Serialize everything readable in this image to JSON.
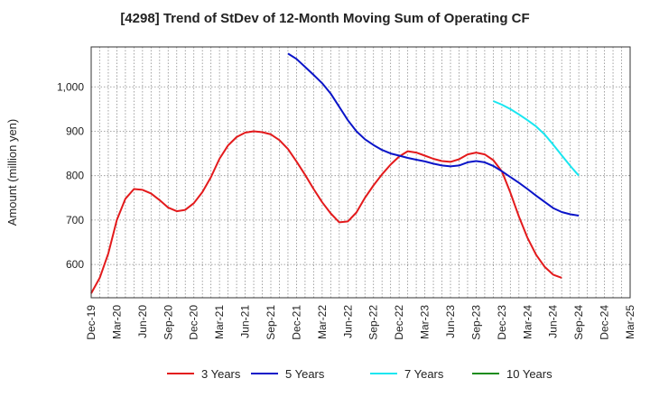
{
  "chart_data": {
    "type": "line",
    "title": "[4298]  Trend of StDev of 12-Month Moving Sum of Operating CF",
    "xlabel": "",
    "ylabel": "Amount (million yen)",
    "x_ticks": [
      "Dec-19",
      "Mar-20",
      "Jun-20",
      "Sep-20",
      "Dec-20",
      "Mar-21",
      "Jun-21",
      "Sep-21",
      "Dec-21",
      "Mar-22",
      "Jun-22",
      "Sep-22",
      "Dec-22",
      "Mar-23",
      "Jun-23",
      "Sep-23",
      "Dec-23",
      "Mar-24",
      "Jun-24",
      "Sep-24",
      "Dec-24",
      "Mar-25"
    ],
    "y_ticks": [
      600,
      700,
      800,
      900,
      1000
    ],
    "y_tick_labels": [
      "600",
      "700",
      "800",
      "900",
      "1,000"
    ],
    "ylim": [
      525,
      1090
    ],
    "grid": true,
    "legend_position": "bottom",
    "series": [
      {
        "name": "3 Years",
        "color": "#e31a1c",
        "points": [
          [
            "Dec-19",
            535
          ],
          [
            "Jan-20",
            570
          ],
          [
            "Feb-20",
            625
          ],
          [
            "Mar-20",
            700
          ],
          [
            "Apr-20",
            748
          ],
          [
            "May-20",
            770
          ],
          [
            "Jun-20",
            768
          ],
          [
            "Jul-20",
            760
          ],
          [
            "Aug-20",
            745
          ],
          [
            "Sep-20",
            728
          ],
          [
            "Oct-20",
            720
          ],
          [
            "Nov-20",
            723
          ],
          [
            "Dec-20",
            738
          ],
          [
            "Jan-21",
            763
          ],
          [
            "Feb-21",
            797
          ],
          [
            "Mar-21",
            838
          ],
          [
            "Apr-21",
            868
          ],
          [
            "May-21",
            887
          ],
          [
            "Jun-21",
            897
          ],
          [
            "Jul-21",
            900
          ],
          [
            "Aug-21",
            898
          ],
          [
            "Sep-21",
            893
          ],
          [
            "Oct-21",
            880
          ],
          [
            "Nov-21",
            860
          ],
          [
            "Dec-21",
            832
          ],
          [
            "Jan-22",
            802
          ],
          [
            "Feb-22",
            770
          ],
          [
            "Mar-22",
            740
          ],
          [
            "Apr-22",
            715
          ],
          [
            "May-22",
            695
          ],
          [
            "Jun-22",
            697
          ],
          [
            "Jul-22",
            717
          ],
          [
            "Aug-22",
            750
          ],
          [
            "Sep-22",
            778
          ],
          [
            "Oct-22",
            803
          ],
          [
            "Nov-22",
            825
          ],
          [
            "Dec-22",
            843
          ],
          [
            "Jan-23",
            855
          ],
          [
            "Feb-23",
            852
          ],
          [
            "Mar-23",
            845
          ],
          [
            "Apr-23",
            838
          ],
          [
            "May-23",
            833
          ],
          [
            "Jun-23",
            831
          ],
          [
            "Jul-23",
            837
          ],
          [
            "Aug-23",
            848
          ],
          [
            "Sep-23",
            852
          ],
          [
            "Oct-23",
            848
          ],
          [
            "Nov-23",
            835
          ],
          [
            "Dec-23",
            810
          ],
          [
            "Jan-24",
            762
          ],
          [
            "Feb-24",
            708
          ],
          [
            "Mar-24",
            660
          ],
          [
            "Apr-24",
            622
          ],
          [
            "May-24",
            595
          ],
          [
            "Jun-24",
            577
          ],
          [
            "Jul-24",
            570
          ]
        ]
      },
      {
        "name": "5 Years",
        "color": "#0a14c8",
        "points": [
          [
            "Nov-21",
            1075
          ],
          [
            "Dec-21",
            1063
          ],
          [
            "Jan-22",
            1045
          ],
          [
            "Feb-22",
            1027
          ],
          [
            "Mar-22",
            1008
          ],
          [
            "Apr-22",
            985
          ],
          [
            "May-22",
            955
          ],
          [
            "Jun-22",
            925
          ],
          [
            "Jul-22",
            900
          ],
          [
            "Aug-22",
            882
          ],
          [
            "Sep-22",
            869
          ],
          [
            "Oct-22",
            858
          ],
          [
            "Nov-22",
            850
          ],
          [
            "Dec-22",
            845
          ],
          [
            "Jan-23",
            840
          ],
          [
            "Feb-23",
            836
          ],
          [
            "Mar-23",
            832
          ],
          [
            "Apr-23",
            827
          ],
          [
            "May-23",
            823
          ],
          [
            "Jun-23",
            821
          ],
          [
            "Jul-23",
            823
          ],
          [
            "Aug-23",
            830
          ],
          [
            "Sep-23",
            833
          ],
          [
            "Oct-23",
            830
          ],
          [
            "Nov-23",
            822
          ],
          [
            "Dec-23",
            810
          ],
          [
            "Jan-24",
            797
          ],
          [
            "Feb-24",
            784
          ],
          [
            "Mar-24",
            770
          ],
          [
            "Apr-24",
            755
          ],
          [
            "May-24",
            741
          ],
          [
            "Jun-24",
            727
          ],
          [
            "Jul-24",
            718
          ],
          [
            "Aug-24",
            713
          ],
          [
            "Sep-24",
            710
          ]
        ]
      },
      {
        "name": "7 Years",
        "color": "#19e6f0",
        "points": [
          [
            "Nov-23",
            968
          ],
          [
            "Dec-23",
            960
          ],
          [
            "Jan-24",
            950
          ],
          [
            "Feb-24",
            938
          ],
          [
            "Mar-24",
            925
          ],
          [
            "Apr-24",
            911
          ],
          [
            "May-24",
            893
          ],
          [
            "Jun-24",
            870
          ],
          [
            "Jul-24",
            846
          ],
          [
            "Aug-24",
            822
          ],
          [
            "Sep-24",
            800
          ]
        ]
      },
      {
        "name": "10 Years",
        "color": "#1a8c1a",
        "points": []
      }
    ]
  }
}
